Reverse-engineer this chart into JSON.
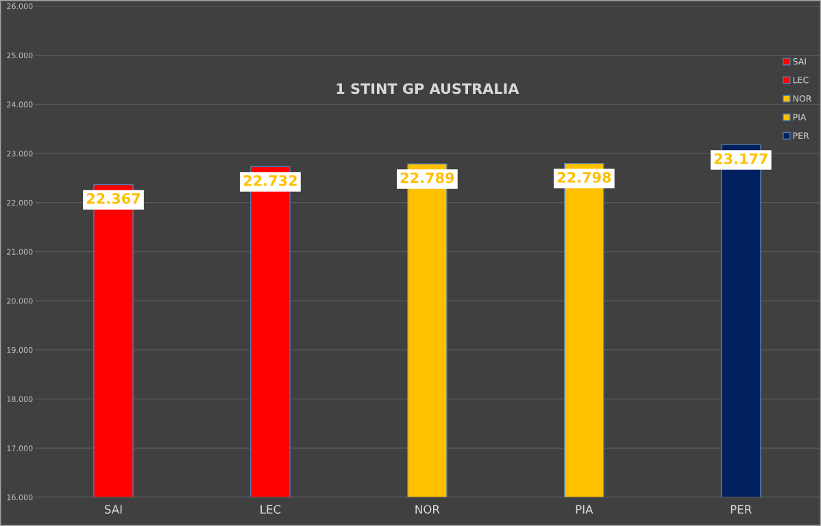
{
  "chart_data": {
    "type": "bar",
    "title": "1 STINT GP AUSTRALIA",
    "categories": [
      "SAI",
      "LEC",
      "NOR",
      "PIA",
      "PER"
    ],
    "series": [
      {
        "name": "SAI",
        "color": "#ff0000",
        "values": [
          22.367,
          null,
          null,
          null,
          null
        ]
      },
      {
        "name": "LEC",
        "color": "#ff0000",
        "values": [
          null,
          22.732,
          null,
          null,
          null
        ]
      },
      {
        "name": "NOR",
        "color": "#ffc000",
        "values": [
          null,
          null,
          22.789,
          null,
          null
        ]
      },
      {
        "name": "PIA",
        "color": "#ffc000",
        "values": [
          null,
          null,
          null,
          22.798,
          null
        ]
      },
      {
        "name": "PER",
        "color": "#002060",
        "values": [
          null,
          null,
          null,
          null,
          23.177
        ]
      }
    ],
    "ylim": [
      16,
      26
    ],
    "yticks": [
      {
        "value": 16,
        "label": "16.000"
      },
      {
        "value": 17,
        "label": "17.000"
      },
      {
        "value": 18,
        "label": "18.000"
      },
      {
        "value": 19,
        "label": "19.000"
      },
      {
        "value": 20,
        "label": "20.000"
      },
      {
        "value": 21,
        "label": "21.000"
      },
      {
        "value": 22,
        "label": "22.000"
      },
      {
        "value": 23,
        "label": "23.000"
      },
      {
        "value": 24,
        "label": "24.000"
      },
      {
        "value": 25,
        "label": "25.000"
      },
      {
        "value": 26,
        "label": "26.000"
      }
    ],
    "grid": "y",
    "legend": "top right",
    "data_labels": true
  }
}
